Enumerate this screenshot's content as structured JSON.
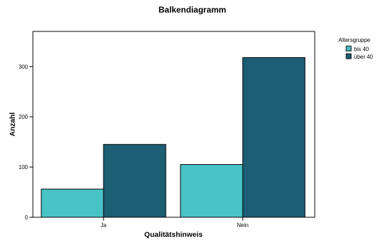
{
  "chart_data": {
    "type": "bar",
    "title": "Balkendiagramm",
    "xlabel": "Qualitätshinweis",
    "ylabel": "Anzahl",
    "categories": [
      "Ja",
      "Nein"
    ],
    "series": [
      {
        "name": "bis 40",
        "color": "#48C3C6",
        "values": [
          56,
          105
        ]
      },
      {
        "name": "über 40",
        "color": "#1C5E73",
        "values": [
          145,
          318
        ]
      }
    ],
    "ylim": [
      0,
      370
    ],
    "yticks": [
      0,
      100,
      200,
      300
    ],
    "grid": false,
    "legend": {
      "title": "Altersgruppe",
      "position": "top-right"
    }
  }
}
